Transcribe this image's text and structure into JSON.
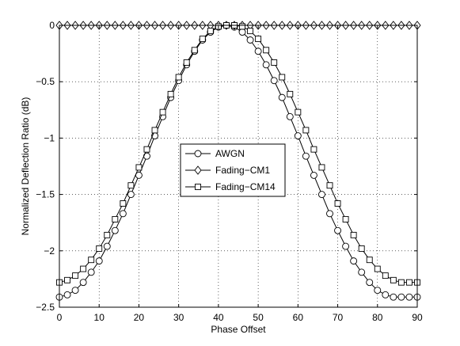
{
  "chart_data": {
    "type": "line",
    "xlabel": "Phase Offset",
    "ylabel": "Normalized Deflection Ratio (dB)",
    "xlim": [
      0,
      90
    ],
    "ylim": [
      -2.5,
      0
    ],
    "xticks": [
      0,
      10,
      20,
      30,
      40,
      50,
      60,
      70,
      80,
      90
    ],
    "yticks": [
      0,
      -0.5,
      -1,
      -1.5,
      -2,
      -2.5
    ],
    "xtick_labels": [
      "0",
      "10",
      "20",
      "30",
      "40",
      "50",
      "60",
      "70",
      "80",
      "90"
    ],
    "ytick_labels": [
      "0",
      "−0.5",
      "−1",
      "−1.5",
      "−2",
      "−2.5"
    ],
    "grid": true,
    "legend_position": "center-left",
    "x": [
      0,
      2,
      4,
      6,
      8,
      10,
      12,
      14,
      16,
      18,
      20,
      22,
      24,
      26,
      28,
      30,
      32,
      34,
      36,
      38,
      40,
      42,
      44,
      46,
      48,
      50,
      52,
      54,
      56,
      58,
      60,
      62,
      64,
      66,
      68,
      70,
      72,
      74,
      76,
      78,
      80,
      82,
      84,
      86,
      88,
      90
    ],
    "series": [
      {
        "name": "AWGN",
        "marker": "circle",
        "values": [
          -2.41,
          -2.39,
          -2.35,
          -2.28,
          -2.19,
          -2.09,
          -1.96,
          -1.82,
          -1.67,
          -1.5,
          -1.33,
          -1.16,
          -0.98,
          -0.81,
          -0.64,
          -0.49,
          -0.35,
          -0.23,
          -0.13,
          -0.06,
          -0.015,
          0,
          -0.015,
          -0.06,
          -0.13,
          -0.23,
          -0.35,
          -0.49,
          -0.64,
          -0.81,
          -0.98,
          -1.16,
          -1.33,
          -1.5,
          -1.67,
          -1.82,
          -1.96,
          -2.09,
          -2.19,
          -2.28,
          -2.35,
          -2.39,
          -2.41,
          -2.41,
          -2.41,
          -2.41
        ]
      },
      {
        "name": "Fading−CM1",
        "marker": "diamond",
        "values": [
          0,
          0,
          0,
          0,
          0,
          0,
          0,
          0,
          0,
          0,
          0,
          0,
          0,
          0,
          0,
          0,
          0,
          0,
          0,
          0,
          0,
          0,
          0,
          0,
          0,
          0,
          0,
          0,
          0,
          0,
          0,
          0,
          0,
          0,
          0,
          0,
          0,
          0,
          0,
          0,
          0,
          0,
          0,
          0,
          0,
          0
        ]
      },
      {
        "name": "Fading−CM14",
        "marker": "square",
        "values": [
          -2.28,
          -2.26,
          -2.22,
          -2.16,
          -2.08,
          -1.98,
          -1.86,
          -1.72,
          -1.58,
          -1.42,
          -1.26,
          -1.1,
          -0.93,
          -0.77,
          -0.61,
          -0.46,
          -0.33,
          -0.22,
          -0.12,
          -0.05,
          -0.01,
          0,
          0,
          -0.01,
          -0.05,
          -0.12,
          -0.22,
          -0.33,
          -0.46,
          -0.61,
          -0.77,
          -0.93,
          -1.1,
          -1.26,
          -1.42,
          -1.58,
          -1.72,
          -1.86,
          -1.98,
          -2.08,
          -2.16,
          -2.22,
          -2.26,
          -2.28,
          -2.28,
          -2.28
        ]
      }
    ]
  }
}
